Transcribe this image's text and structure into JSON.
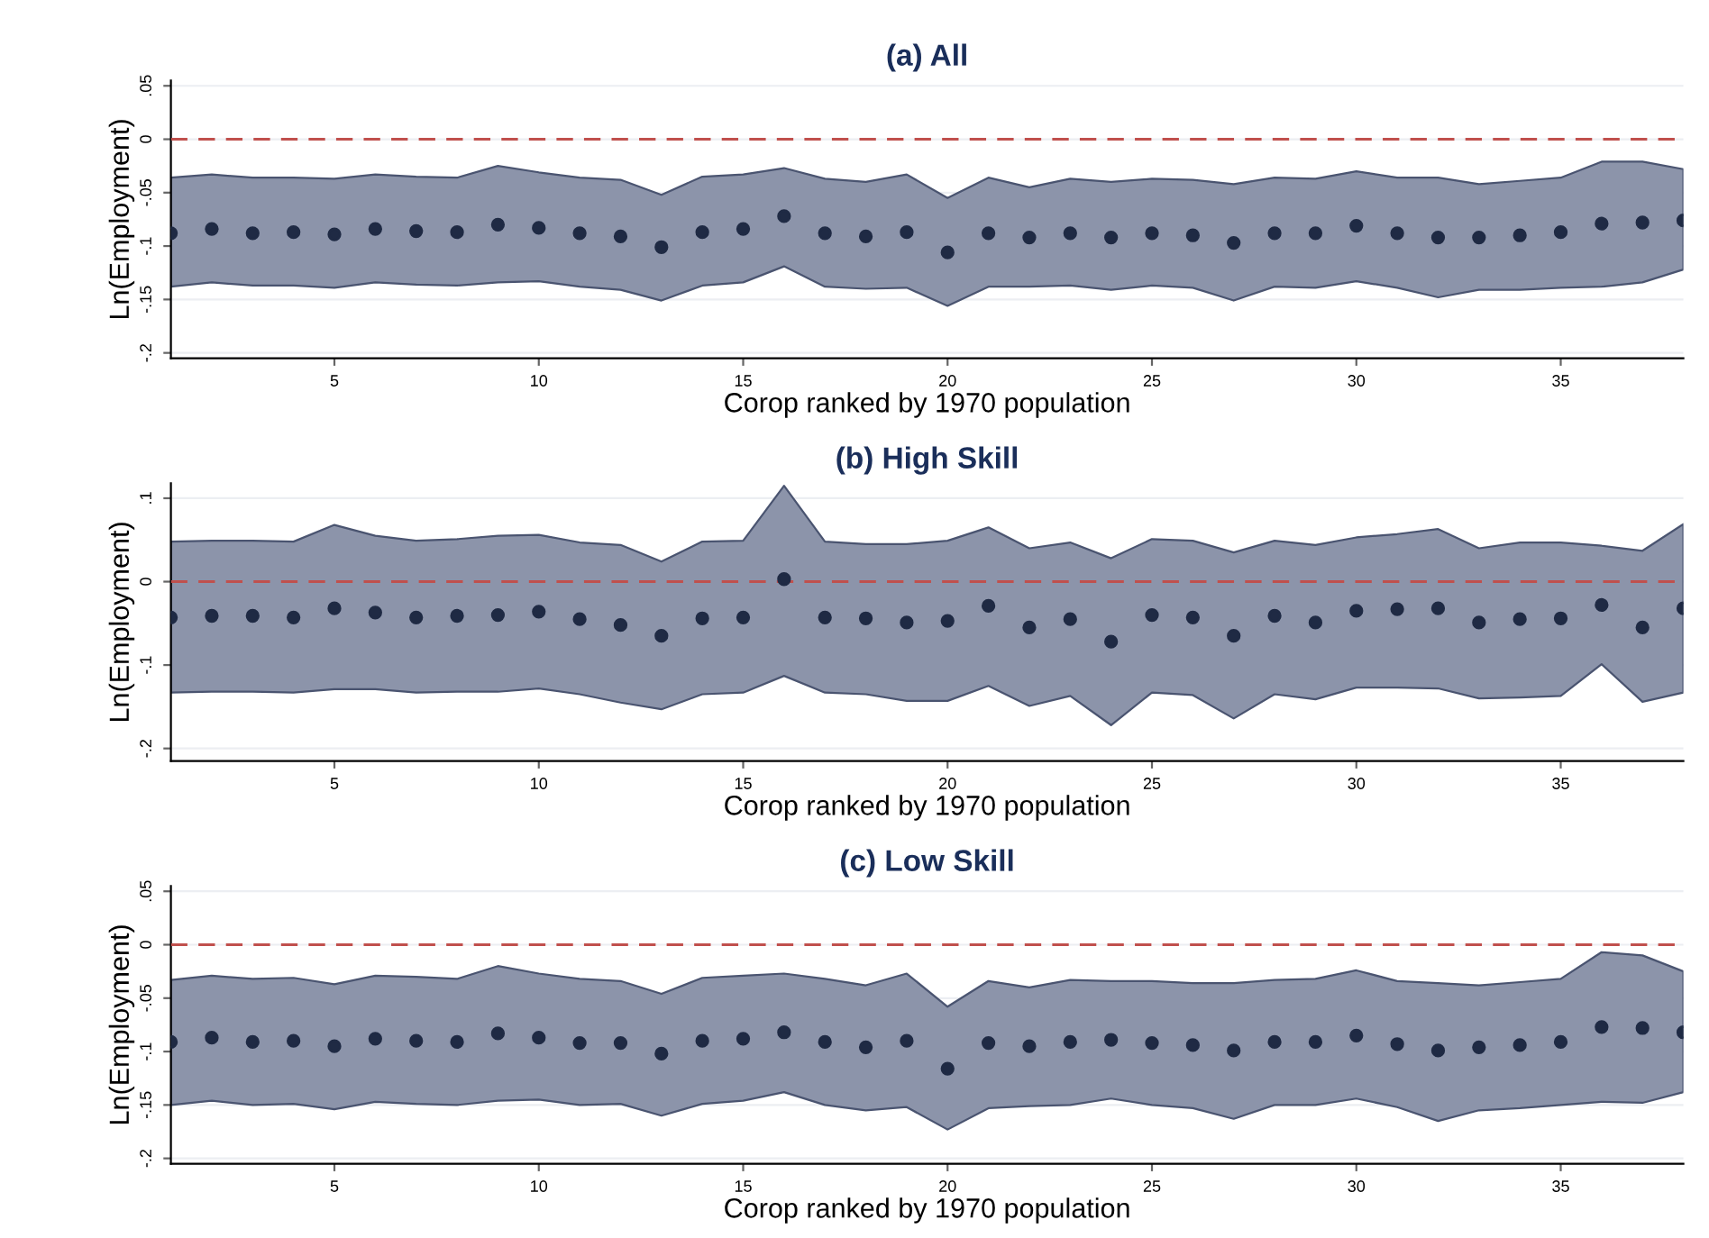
{
  "chart_data": [
    {
      "type": "scatter",
      "title": "(a) All",
      "xlabel": "Corop ranked by 1970 population",
      "ylabel": "Ln(Employment)",
      "x": [
        1,
        2,
        3,
        4,
        5,
        6,
        7,
        8,
        9,
        10,
        11,
        12,
        13,
        14,
        15,
        16,
        17,
        18,
        19,
        20,
        21,
        22,
        23,
        24,
        25,
        26,
        27,
        28,
        29,
        30,
        31,
        32,
        33,
        34,
        35,
        36,
        37,
        38
      ],
      "xlim": [
        1,
        38
      ],
      "xticks": [
        5,
        10,
        15,
        20,
        25,
        30,
        35
      ],
      "ylim": [
        -0.205,
        0.055
      ],
      "yticks": [
        {
          "value": -0.2,
          "label": "-.2"
        },
        {
          "value": -0.15,
          "label": "-.15"
        },
        {
          "value": -0.1,
          "label": "-.1"
        },
        {
          "value": -0.05,
          "label": "-.05"
        },
        {
          "value": 0,
          "label": "0"
        },
        {
          "value": 0.05,
          "label": ".05"
        }
      ],
      "grid": "y",
      "marker": "circle",
      "series": [
        {
          "color": "#1f2a44",
          "values": [
            -0.088,
            -0.084,
            -0.088,
            -0.087,
            -0.089,
            -0.084,
            -0.086,
            -0.087,
            -0.08,
            -0.083,
            -0.088,
            -0.091,
            -0.101,
            -0.087,
            -0.084,
            -0.072,
            -0.088,
            -0.091,
            -0.087,
            -0.106,
            -0.088,
            -0.092,
            -0.088,
            -0.092,
            -0.088,
            -0.09,
            -0.097,
            -0.088,
            -0.088,
            -0.081,
            -0.088,
            -0.092,
            -0.092,
            -0.09,
            -0.087,
            -0.079,
            -0.078,
            -0.076
          ],
          "upper": [
            -0.036,
            -0.033,
            -0.036,
            -0.036,
            -0.037,
            -0.033,
            -0.035,
            -0.036,
            -0.025,
            -0.031,
            -0.036,
            -0.038,
            -0.052,
            -0.035,
            -0.033,
            -0.027,
            -0.037,
            -0.04,
            -0.033,
            -0.055,
            -0.036,
            -0.045,
            -0.037,
            -0.04,
            -0.037,
            -0.038,
            -0.042,
            -0.036,
            -0.037,
            -0.03,
            -0.036,
            -0.036,
            -0.042,
            -0.039,
            -0.036,
            -0.021,
            -0.021,
            -0.028
          ],
          "lower": [
            -0.138,
            -0.134,
            -0.137,
            -0.137,
            -0.139,
            -0.134,
            -0.136,
            -0.137,
            -0.134,
            -0.133,
            -0.138,
            -0.141,
            -0.151,
            -0.137,
            -0.134,
            -0.119,
            -0.138,
            -0.14,
            -0.139,
            -0.156,
            -0.138,
            -0.138,
            -0.137,
            -0.141,
            -0.137,
            -0.139,
            -0.151,
            -0.138,
            -0.139,
            -0.133,
            -0.139,
            -0.148,
            -0.141,
            -0.141,
            -0.139,
            -0.138,
            -0.134,
            -0.122
          ]
        }
      ],
      "ref_lines": [
        {
          "axis": "y",
          "value": 0,
          "color": "#c0504d",
          "line_style": "dashed"
        }
      ]
    },
    {
      "type": "scatter",
      "title": "(b) High Skill",
      "xlabel": "Corop ranked by 1970 population",
      "ylabel": "Ln(Employment)",
      "x": [
        1,
        2,
        3,
        4,
        5,
        6,
        7,
        8,
        9,
        10,
        11,
        12,
        13,
        14,
        15,
        16,
        17,
        18,
        19,
        20,
        21,
        22,
        23,
        24,
        25,
        26,
        27,
        28,
        29,
        30,
        31,
        32,
        33,
        34,
        35,
        36,
        37,
        38
      ],
      "xlim": [
        1,
        38
      ],
      "xticks": [
        5,
        10,
        15,
        20,
        25,
        30,
        35
      ],
      "ylim": [
        -0.215,
        0.118
      ],
      "yticks": [
        {
          "value": -0.2,
          "label": "-.2"
        },
        {
          "value": -0.1,
          "label": "-.1"
        },
        {
          "value": 0,
          "label": "0"
        },
        {
          "value": 0.1,
          "label": ".1"
        }
      ],
      "grid": "y",
      "marker": "circle",
      "series": [
        {
          "color": "#1f2a44",
          "values": [
            -0.043,
            -0.041,
            -0.041,
            -0.043,
            -0.032,
            -0.037,
            -0.043,
            -0.041,
            -0.04,
            -0.036,
            -0.045,
            -0.052,
            -0.065,
            -0.044,
            -0.043,
            0.003,
            -0.043,
            -0.044,
            -0.049,
            -0.047,
            -0.029,
            -0.055,
            -0.045,
            -0.072,
            -0.04,
            -0.043,
            -0.065,
            -0.041,
            -0.049,
            -0.035,
            -0.033,
            -0.032,
            -0.049,
            -0.045,
            -0.044,
            -0.028,
            -0.055,
            -0.032
          ],
          "upper": [
            0.048,
            0.049,
            0.049,
            0.048,
            0.068,
            0.055,
            0.049,
            0.051,
            0.055,
            0.056,
            0.047,
            0.044,
            0.024,
            0.048,
            0.049,
            0.115,
            0.048,
            0.045,
            0.045,
            0.049,
            0.065,
            0.04,
            0.047,
            0.028,
            0.051,
            0.049,
            0.035,
            0.049,
            0.044,
            0.053,
            0.057,
            0.063,
            0.04,
            0.047,
            0.047,
            0.043,
            0.037,
            0.069
          ],
          "lower": [
            -0.133,
            -0.132,
            -0.132,
            -0.133,
            -0.129,
            -0.129,
            -0.133,
            -0.132,
            -0.132,
            -0.128,
            -0.135,
            -0.145,
            -0.153,
            -0.135,
            -0.133,
            -0.113,
            -0.133,
            -0.135,
            -0.143,
            -0.143,
            -0.125,
            -0.149,
            -0.137,
            -0.172,
            -0.133,
            -0.136,
            -0.164,
            -0.135,
            -0.141,
            -0.127,
            -0.127,
            -0.128,
            -0.14,
            -0.139,
            -0.137,
            -0.099,
            -0.144,
            -0.133
          ]
        }
      ],
      "ref_lines": [
        {
          "axis": "y",
          "value": 0,
          "color": "#c0504d",
          "line_style": "dashed"
        }
      ]
    },
    {
      "type": "scatter",
      "title": "(c) Low Skill",
      "xlabel": "Corop ranked by 1970 population",
      "ylabel": "Ln(Employment)",
      "x": [
        1,
        2,
        3,
        4,
        5,
        6,
        7,
        8,
        9,
        10,
        11,
        12,
        13,
        14,
        15,
        16,
        17,
        18,
        19,
        20,
        21,
        22,
        23,
        24,
        25,
        26,
        27,
        28,
        29,
        30,
        31,
        32,
        33,
        34,
        35,
        36,
        37,
        38
      ],
      "xlim": [
        1,
        38
      ],
      "xticks": [
        5,
        10,
        15,
        20,
        25,
        30,
        35
      ],
      "ylim": [
        -0.205,
        0.055
      ],
      "yticks": [
        {
          "value": -0.2,
          "label": "-.2"
        },
        {
          "value": -0.15,
          "label": "-.15"
        },
        {
          "value": -0.1,
          "label": "-.1"
        },
        {
          "value": -0.05,
          "label": "-.05"
        },
        {
          "value": 0,
          "label": "0"
        },
        {
          "value": 0.05,
          "label": ".05"
        }
      ],
      "grid": "y",
      "marker": "circle",
      "series": [
        {
          "color": "#1f2a44",
          "values": [
            -0.091,
            -0.087,
            -0.091,
            -0.09,
            -0.095,
            -0.088,
            -0.09,
            -0.091,
            -0.083,
            -0.087,
            -0.092,
            -0.092,
            -0.102,
            -0.09,
            -0.088,
            -0.082,
            -0.091,
            -0.096,
            -0.09,
            -0.116,
            -0.092,
            -0.095,
            -0.091,
            -0.089,
            -0.092,
            -0.094,
            -0.099,
            -0.091,
            -0.091,
            -0.085,
            -0.093,
            -0.099,
            -0.096,
            -0.094,
            -0.091,
            -0.077,
            -0.078,
            -0.082
          ],
          "upper": [
            -0.033,
            -0.029,
            -0.032,
            -0.031,
            -0.037,
            -0.029,
            -0.03,
            -0.032,
            -0.02,
            -0.027,
            -0.032,
            -0.034,
            -0.046,
            -0.031,
            -0.029,
            -0.027,
            -0.032,
            -0.038,
            -0.027,
            -0.058,
            -0.034,
            -0.04,
            -0.033,
            -0.034,
            -0.034,
            -0.036,
            -0.036,
            -0.033,
            -0.032,
            -0.024,
            -0.034,
            -0.036,
            -0.038,
            -0.035,
            -0.032,
            -0.007,
            -0.01,
            -0.025
          ],
          "lower": [
            -0.15,
            -0.146,
            -0.15,
            -0.149,
            -0.154,
            -0.147,
            -0.149,
            -0.15,
            -0.146,
            -0.145,
            -0.15,
            -0.149,
            -0.16,
            -0.149,
            -0.146,
            -0.138,
            -0.15,
            -0.155,
            -0.152,
            -0.173,
            -0.153,
            -0.151,
            -0.15,
            -0.144,
            -0.15,
            -0.153,
            -0.163,
            -0.15,
            -0.15,
            -0.144,
            -0.152,
            -0.165,
            -0.155,
            -0.153,
            -0.15,
            -0.147,
            -0.148,
            -0.138
          ]
        }
      ],
      "ref_lines": [
        {
          "axis": "y",
          "value": 0,
          "color": "#c0504d",
          "line_style": "dashed"
        }
      ]
    }
  ]
}
